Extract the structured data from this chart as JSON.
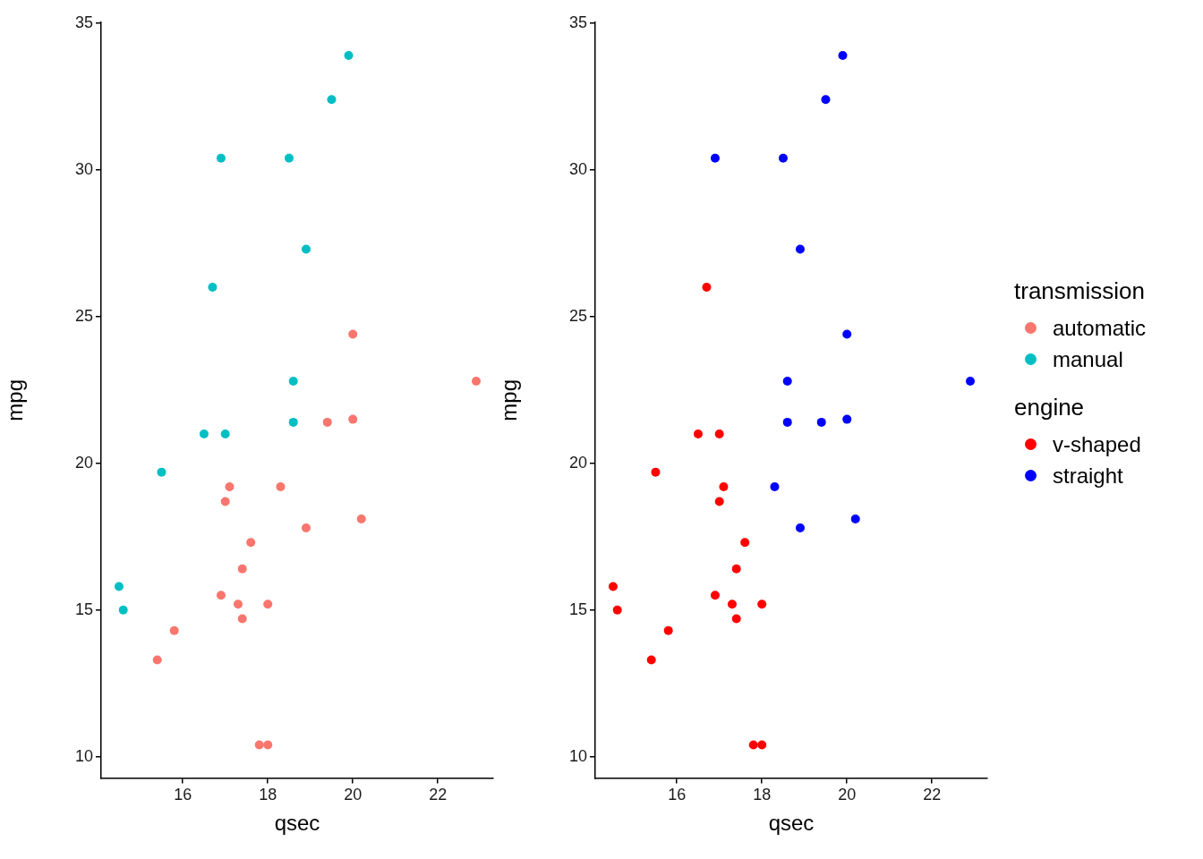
{
  "chart_data": [
    {
      "type": "scatter",
      "xlabel": "qsec",
      "ylabel": "mpg",
      "xlim": [
        14.08,
        23.3
      ],
      "ylim": [
        9.27,
        35.03
      ],
      "xticks": [
        16,
        18,
        20,
        22
      ],
      "yticks": [
        10,
        15,
        20,
        25,
        30,
        35
      ],
      "marker": "circle",
      "legend": "right",
      "legend_title": "transmission",
      "series": [
        {
          "name": "automatic",
          "color": "#f8766d",
          "x": [
            19.4,
            17.0,
            20.2,
            15.8,
            20.0,
            22.9,
            18.3,
            18.9,
            17.4,
            17.6,
            18.0,
            18.0,
            17.8,
            17.4,
            20.0,
            16.9,
            17.3,
            15.4,
            17.1
          ],
          "values": [
            21.4,
            18.7,
            18.1,
            14.3,
            24.4,
            22.8,
            19.2,
            17.8,
            16.4,
            17.3,
            15.2,
            10.4,
            10.4,
            14.7,
            21.5,
            15.5,
            15.2,
            13.3,
            19.2
          ]
        },
        {
          "name": "manual",
          "color": "#00bfc4",
          "x": [
            16.5,
            17.0,
            18.6,
            19.5,
            18.5,
            19.9,
            18.9,
            16.7,
            16.9,
            14.5,
            15.5,
            14.6,
            18.6
          ],
          "values": [
            21.0,
            21.0,
            22.8,
            32.4,
            30.4,
            33.9,
            27.3,
            26.0,
            30.4,
            15.8,
            19.7,
            15.0,
            21.4
          ]
        }
      ]
    },
    {
      "type": "scatter",
      "xlabel": "qsec",
      "ylabel": "mpg",
      "xlim": [
        14.08,
        23.3
      ],
      "ylim": [
        9.27,
        35.03
      ],
      "xticks": [
        16,
        18,
        20,
        22
      ],
      "yticks": [
        10,
        15,
        20,
        25,
        30,
        35
      ],
      "marker": "circle",
      "legend": "right",
      "legend_title": "engine",
      "series": [
        {
          "name": "v-shaped",
          "color": "#ff0000",
          "x": [
            16.5,
            17.0,
            17.0,
            15.8,
            17.4,
            17.6,
            18.0,
            18.0,
            17.8,
            17.4,
            16.9,
            17.3,
            15.4,
            17.1,
            16.7,
            14.5,
            15.5,
            14.6
          ],
          "values": [
            21.0,
            21.0,
            18.7,
            14.3,
            16.4,
            17.3,
            15.2,
            10.4,
            10.4,
            14.7,
            15.5,
            15.2,
            13.3,
            19.2,
            26.0,
            15.8,
            19.7,
            15.0
          ]
        },
        {
          "name": "straight",
          "color": "#0000ff",
          "x": [
            18.6,
            19.4,
            20.2,
            20.0,
            22.9,
            18.3,
            18.9,
            19.5,
            18.5,
            19.9,
            20.0,
            18.9,
            16.9,
            18.6
          ],
          "values": [
            22.8,
            21.4,
            18.1,
            24.4,
            22.8,
            19.2,
            17.8,
            32.4,
            30.4,
            33.9,
            21.5,
            27.3,
            30.4,
            21.4
          ]
        }
      ]
    }
  ]
}
